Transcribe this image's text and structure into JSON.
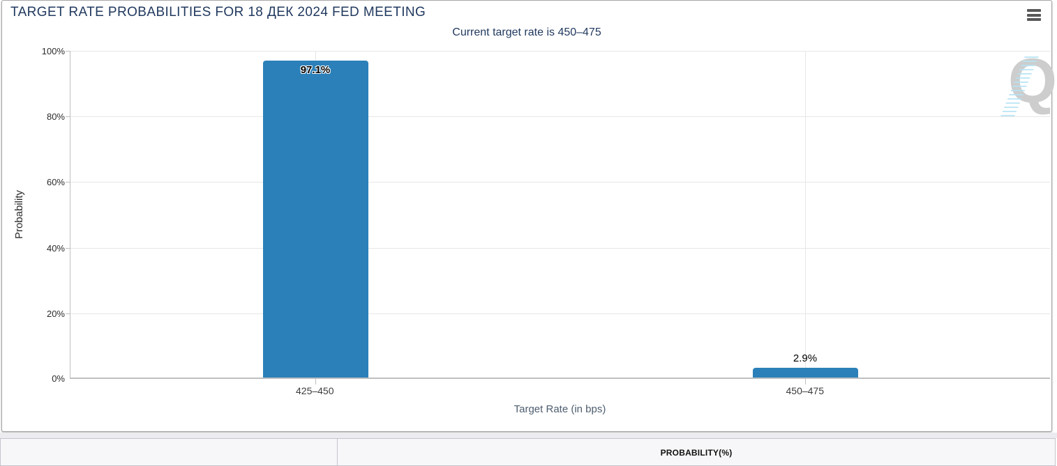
{
  "panel": {
    "title": "TARGET RATE PROBABILITIES FOR 18 ДЕК 2024 FED MEETING",
    "subtitle": "Current target rate is 450–475"
  },
  "chart_data": {
    "type": "bar",
    "title": "TARGET RATE PROBABILITIES FOR 18 ДЕК 2024 FED MEETING",
    "subtitle": "Current target rate is 450–475",
    "categories": [
      "425–450",
      "450–475"
    ],
    "values": [
      97.1,
      2.9
    ],
    "value_labels": [
      "97.1%",
      "2.9%"
    ],
    "xlabel": "Target Rate (in bps)",
    "ylabel": "Probability",
    "ylim": [
      0,
      100
    ],
    "ytick_labels": [
      "100%",
      "80%",
      "60%",
      "40%",
      "20%",
      "0%"
    ],
    "grid": true,
    "legend": "none",
    "bar_color": "#2b80b9"
  },
  "watermark": {
    "letter": "Q"
  },
  "bottom_table": {
    "headers": [
      "",
      "PROBABILITY(%)"
    ]
  },
  "icons": {
    "menu": "hamburger-menu-icon"
  },
  "colors": {
    "title_text": "#21395f",
    "bar": "#2b80b9",
    "axis_line": "#bfbfbf",
    "gridline": "#e6e6e6",
    "tick_text": "#2b2b2b",
    "x_axis_title_text": "#4d5d6e",
    "table_background": "#f7f7f9",
    "table_border": "#c4c4cc",
    "watermark_gray": "#cdcdcd",
    "watermark_blue": "#b5e3f3"
  }
}
